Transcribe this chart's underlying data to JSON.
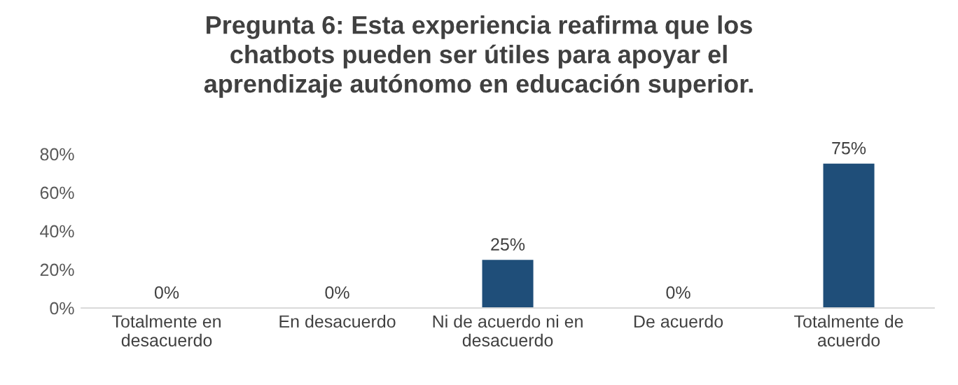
{
  "chart_data": {
    "type": "bar",
    "title": "Pregunta 6: Esta experiencia reafirma que los chatbots pueden ser útiles para apoyar el aprendizaje autónomo en educación superior.",
    "categories": [
      "Totalmente en desacuerdo",
      "En desacuerdo",
      "Ni de acuerdo ni en desacuerdo",
      "De acuerdo",
      "Totalmente de acuerdo"
    ],
    "values": [
      0,
      0,
      25,
      0,
      75
    ],
    "color": "#1f4e79",
    "value_labels": [
      "0%",
      "0%",
      "25%",
      "0%",
      "75%"
    ],
    "ylim": [
      0,
      80
    ],
    "yticks": [
      {
        "value": 0,
        "label": "0%"
      },
      {
        "value": 20,
        "label": "20%"
      },
      {
        "value": 40,
        "label": "40%"
      },
      {
        "value": 60,
        "label": "60%"
      },
      {
        "value": 80,
        "label": "80%"
      }
    ],
    "grid": false,
    "legend": false
  }
}
